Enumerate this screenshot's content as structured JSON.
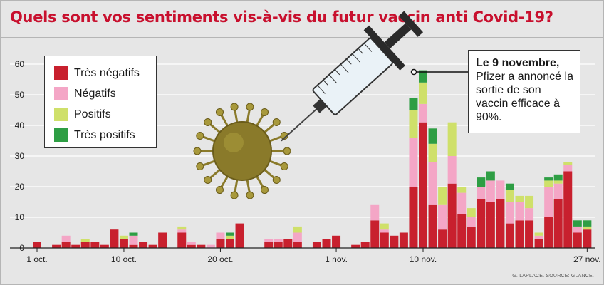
{
  "title": "Quels sont vos sentiments vis-à-vis du futur vaccin anti Covid-19?",
  "credit": "G. LAPLACE. SOURCE: GLANCE.",
  "legend": {
    "items": [
      {
        "label": "Très négatifs",
        "color": "#c8202e"
      },
      {
        "label": "Négatifs",
        "color": "#f4a6c6"
      },
      {
        "label": "Positifs",
        "color": "#cfe06a"
      },
      {
        "label": "Très positifs",
        "color": "#2e9e44"
      }
    ]
  },
  "callout": {
    "heading": "Le 9 novembre,",
    "body": "Pfizer a annoncé la sortie de son vaccin efficace à 90%."
  },
  "colors": {
    "title": "#c8102e",
    "grid": "#ffffff",
    "background": "#e6e6e6"
  },
  "illustration": {
    "virus": "coronavirus-illustration",
    "syringe": "syringe-icon"
  },
  "chart_data": {
    "type": "bar",
    "stacked": true,
    "ylim": [
      0,
      60
    ],
    "yticks": [
      0,
      10,
      20,
      30,
      40,
      50,
      60
    ],
    "xtick_labels": [
      {
        "day": 1,
        "label": "1 oct."
      },
      {
        "day": 10,
        "label": "10 oct."
      },
      {
        "day": 20,
        "label": "20 oct."
      },
      {
        "day": 32,
        "label": "1 nov."
      },
      {
        "day": 41,
        "label": "10 nov."
      },
      {
        "day": 58,
        "label": "27 nov."
      }
    ],
    "days": [
      1,
      2,
      3,
      4,
      5,
      6,
      7,
      8,
      9,
      10,
      11,
      12,
      13,
      14,
      15,
      16,
      17,
      18,
      19,
      20,
      21,
      22,
      23,
      24,
      25,
      26,
      27,
      28,
      29,
      30,
      31,
      32,
      33,
      34,
      35,
      36,
      37,
      38,
      39,
      40,
      41,
      42,
      43,
      44,
      45,
      46,
      47,
      48,
      49,
      50,
      51,
      52,
      53,
      54,
      55,
      56,
      57,
      58
    ],
    "series": [
      {
        "name": "Très négatifs",
        "values": [
          2,
          0,
          1,
          2,
          1,
          2,
          2,
          1,
          6,
          3,
          1,
          2,
          1,
          5,
          0,
          5,
          1,
          1,
          0,
          3,
          3,
          8,
          0,
          0,
          2,
          2,
          3,
          2,
          0,
          2,
          3,
          4,
          0,
          1,
          2,
          9,
          5,
          4,
          5,
          20,
          41,
          14,
          6,
          21,
          11,
          7,
          16,
          15,
          16,
          8,
          9,
          9,
          3,
          10,
          16,
          25,
          5,
          6
        ]
      },
      {
        "name": "Négatifs",
        "values": [
          0,
          0,
          0,
          2,
          0,
          0,
          0,
          0,
          0,
          0,
          3,
          0,
          0,
          0,
          0,
          1,
          1,
          0,
          1,
          2,
          0,
          0,
          0,
          0,
          1,
          1,
          0,
          3,
          0,
          0,
          0,
          0,
          0,
          0,
          0,
          5,
          1,
          0,
          0,
          16,
          6,
          14,
          8,
          9,
          7,
          3,
          4,
          7,
          6,
          7,
          6,
          4,
          1,
          10,
          5,
          2,
          2,
          0
        ]
      },
      {
        "name": "Positifs",
        "values": [
          0,
          0,
          0,
          0,
          0,
          1,
          0,
          0,
          0,
          1,
          0,
          0,
          0,
          0,
          0,
          1,
          0,
          0,
          0,
          0,
          1,
          0,
          0,
          0,
          0,
          0,
          0,
          2,
          0,
          0,
          0,
          0,
          0,
          0,
          0,
          0,
          2,
          0,
          0,
          9,
          7,
          6,
          6,
          11,
          2,
          3,
          0,
          0,
          0,
          4,
          2,
          4,
          1,
          2,
          1,
          1,
          0,
          1
        ]
      },
      {
        "name": "Très positifs",
        "values": [
          0,
          0,
          0,
          0,
          0,
          0,
          0,
          0,
          0,
          0,
          1,
          0,
          0,
          0,
          0,
          0,
          0,
          0,
          0,
          0,
          1,
          0,
          0,
          0,
          0,
          0,
          0,
          0,
          0,
          0,
          0,
          0,
          0,
          0,
          0,
          0,
          0,
          0,
          0,
          4,
          4,
          5,
          0,
          0,
          0,
          0,
          3,
          3,
          0,
          2,
          0,
          0,
          0,
          1,
          2,
          0,
          2,
          2
        ]
      }
    ]
  }
}
